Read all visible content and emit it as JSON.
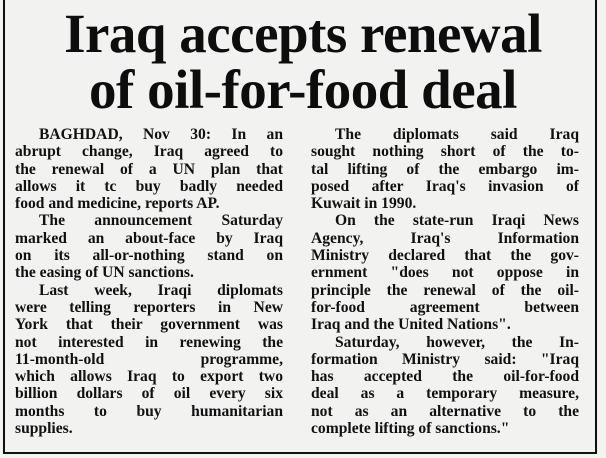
{
  "headline": {
    "line1": "Iraq accepts renewal",
    "line2": "of oil-for-food deal"
  },
  "columns": [
    {
      "paragraphs": [
        [
          "BAGHDAD, Nov 30: In an",
          "abrupt change, Iraq agreed to",
          "the renewal of a UN plan that",
          "allows it tc buy badly needed",
          "food and medicine, reports AP."
        ],
        [
          "The announcement Saturday",
          "marked an about-face by Iraq",
          "on its all-or-nothing stand on",
          "the easing of UN sanctions."
        ],
        [
          "Last week, Iraqi diplomats",
          "were telling reporters in New",
          "York that their government was",
          "not interested in renewing the",
          "11-month-old programme,",
          "which allows Iraq to export two",
          "billion dollars of oil every six",
          "months to buy humanitarian",
          "supplies."
        ]
      ]
    },
    {
      "paragraphs": [
        [
          "The diplomats said Iraq",
          "sought nothing short of the to-",
          "tal lifting of the embargo im-",
          "posed after Iraq's invasion of",
          "Kuwait in 1990."
        ],
        [
          "On the state-run Iraqi News",
          "Agency, Iraq's Information",
          "Ministry declared that the gov-",
          "ernment \"does not oppose in",
          "principle the renewal of the oil-",
          "for-food agreement between",
          "Iraq and the United Nations\"."
        ],
        [
          "Saturday, however, the In-",
          "formation Ministry said: \"Iraq",
          "has accepted the oil-for-food",
          "deal as a temporary measure,",
          "not as an alternative to the",
          "complete lifting of sanctions.\""
        ]
      ]
    }
  ]
}
